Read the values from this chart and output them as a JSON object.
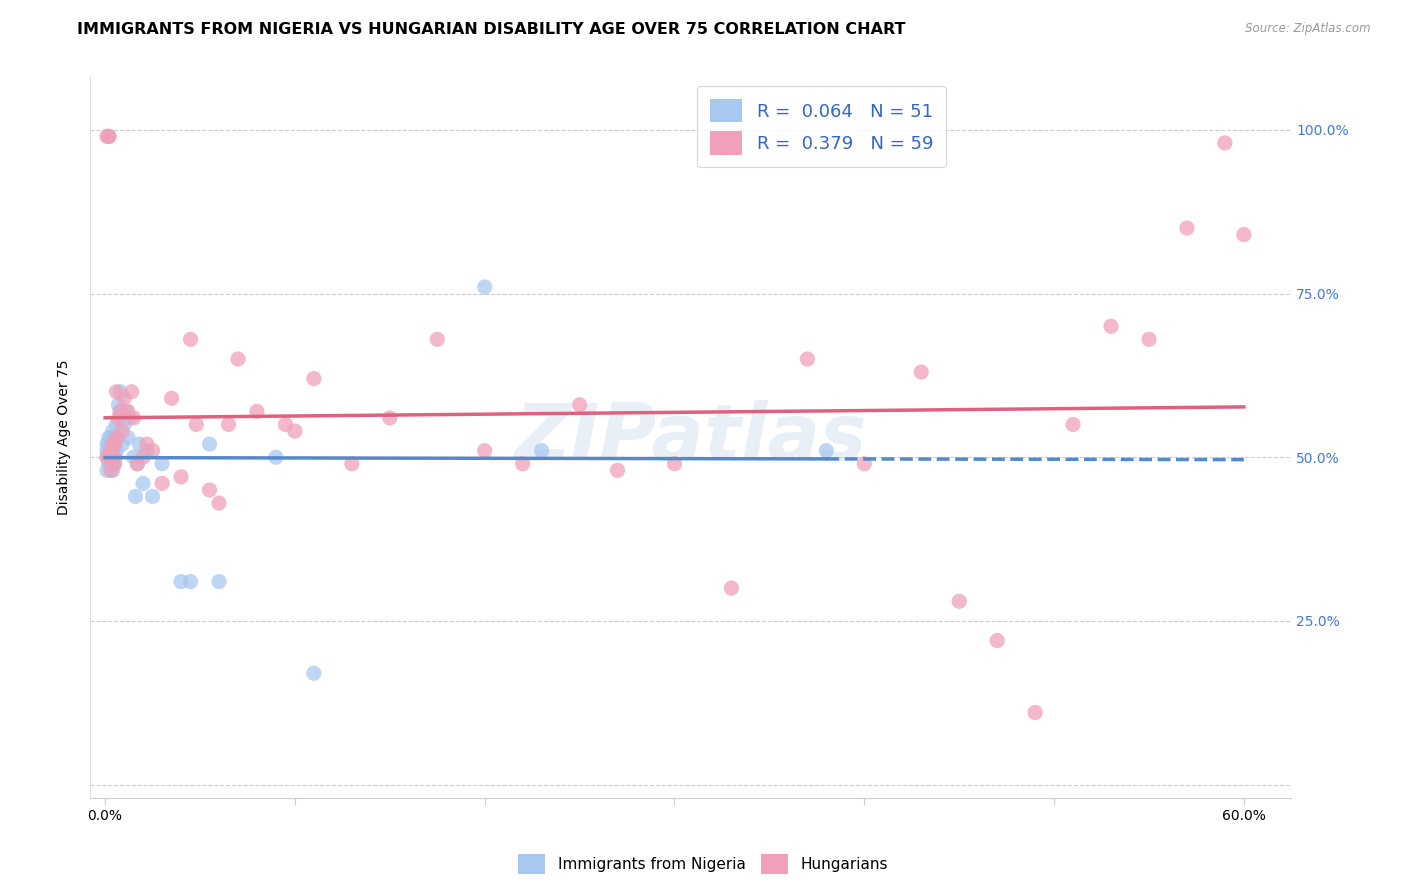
{
  "title": "IMMIGRANTS FROM NIGERIA VS HUNGARIAN DISABILITY AGE OVER 75 CORRELATION CHART",
  "source": "Source: ZipAtlas.com",
  "ylabel": "Disability Age Over 75",
  "R_blue": 0.064,
  "N_blue": 51,
  "R_pink": 0.379,
  "N_pink": 59,
  "color_blue": "#A8C8F0",
  "color_pink": "#F0A0B8",
  "line_blue_color": "#5588CC",
  "line_pink_color": "#E06080",
  "legend_label_blue": "Immigrants from Nigeria",
  "legend_label_pink": "Hungarians",
  "watermark": "ZIPatlas",
  "blue_x": [
    0.001,
    0.001,
    0.001,
    0.001,
    0.002,
    0.002,
    0.002,
    0.002,
    0.002,
    0.003,
    0.003,
    0.003,
    0.003,
    0.003,
    0.003,
    0.004,
    0.004,
    0.004,
    0.004,
    0.004,
    0.005,
    0.005,
    0.005,
    0.005,
    0.006,
    0.006,
    0.007,
    0.008,
    0.008,
    0.009,
    0.01,
    0.011,
    0.012,
    0.013,
    0.015,
    0.016,
    0.017,
    0.018,
    0.02,
    0.022,
    0.025,
    0.03,
    0.04,
    0.045,
    0.055,
    0.06,
    0.09,
    0.11,
    0.2,
    0.23,
    0.38
  ],
  "blue_y": [
    0.48,
    0.5,
    0.51,
    0.52,
    0.49,
    0.5,
    0.51,
    0.52,
    0.53,
    0.48,
    0.49,
    0.5,
    0.51,
    0.52,
    0.53,
    0.48,
    0.49,
    0.51,
    0.52,
    0.54,
    0.49,
    0.5,
    0.52,
    0.53,
    0.51,
    0.55,
    0.58,
    0.57,
    0.6,
    0.52,
    0.55,
    0.57,
    0.53,
    0.56,
    0.5,
    0.44,
    0.49,
    0.52,
    0.46,
    0.51,
    0.44,
    0.49,
    0.31,
    0.31,
    0.52,
    0.31,
    0.5,
    0.17,
    0.76,
    0.51,
    0.51
  ],
  "pink_x": [
    0.001,
    0.001,
    0.002,
    0.002,
    0.002,
    0.003,
    0.003,
    0.004,
    0.004,
    0.005,
    0.005,
    0.005,
    0.006,
    0.006,
    0.007,
    0.008,
    0.009,
    0.01,
    0.012,
    0.014,
    0.015,
    0.017,
    0.02,
    0.022,
    0.025,
    0.03,
    0.035,
    0.04,
    0.045,
    0.048,
    0.055,
    0.06,
    0.065,
    0.07,
    0.08,
    0.095,
    0.1,
    0.11,
    0.13,
    0.15,
    0.175,
    0.2,
    0.22,
    0.25,
    0.27,
    0.3,
    0.33,
    0.37,
    0.4,
    0.43,
    0.45,
    0.47,
    0.49,
    0.51,
    0.53,
    0.55,
    0.57,
    0.59,
    0.6
  ],
  "pink_y": [
    0.5,
    0.99,
    0.99,
    0.99,
    0.5,
    0.51,
    0.48,
    0.5,
    0.52,
    0.49,
    0.5,
    0.52,
    0.53,
    0.6,
    0.56,
    0.57,
    0.54,
    0.59,
    0.57,
    0.6,
    0.56,
    0.49,
    0.5,
    0.52,
    0.51,
    0.46,
    0.59,
    0.47,
    0.68,
    0.55,
    0.45,
    0.43,
    0.55,
    0.65,
    0.57,
    0.55,
    0.54,
    0.62,
    0.49,
    0.56,
    0.68,
    0.51,
    0.49,
    0.58,
    0.48,
    0.49,
    0.3,
    0.65,
    0.49,
    0.63,
    0.28,
    0.22,
    0.11,
    0.55,
    0.7,
    0.68,
    0.85,
    0.98,
    0.84
  ],
  "bg_color": "#FFFFFF",
  "title_fontsize": 11.5,
  "axis_label_fontsize": 10,
  "tick_fontsize": 10,
  "legend_fontsize": 13,
  "right_tick_color": "#4477DD"
}
